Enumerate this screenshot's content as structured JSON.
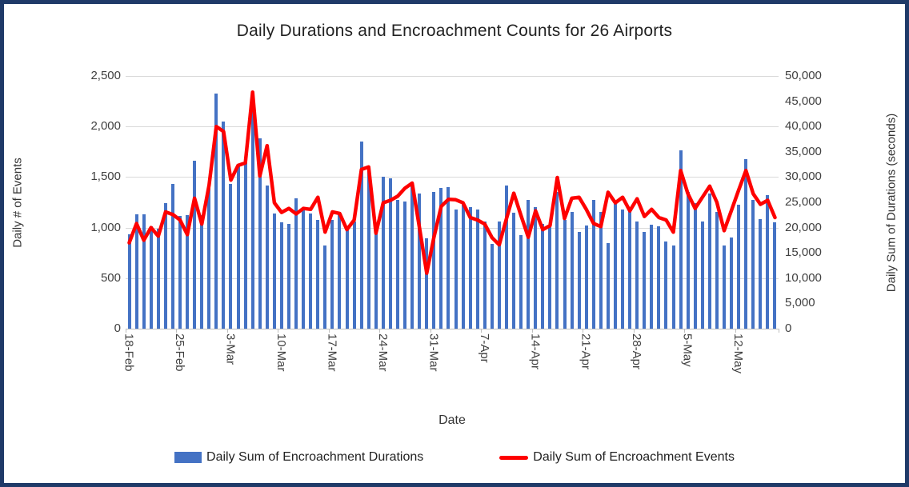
{
  "title": "Daily Durations and Encroachment Counts for 26 Airports",
  "y_left_axis": {
    "title": "Daily # of Events",
    "max": 2500,
    "tick_labels": [
      "2,500",
      "2,000",
      "1,500",
      "1,000",
      "500",
      "0"
    ]
  },
  "y_right_axis": {
    "title": "Daily Sum of Durations (seconds)",
    "max": 50000,
    "tick_labels": [
      "50,000",
      "45,000",
      "40,000",
      "35,000",
      "30,000",
      "25,000",
      "20,000",
      "15,000",
      "10,000",
      "5,000",
      "0"
    ]
  },
  "x_axis": {
    "title": "Date",
    "labeled_tick_interval": 7,
    "tick_labels": [
      "18-Feb",
      "25-Feb",
      "3-Mar",
      "10-Mar",
      "17-Mar",
      "24-Mar",
      "31-Mar",
      "7-Apr",
      "14-Apr",
      "21-Apr",
      "28-Apr",
      "5-May",
      "12-May"
    ]
  },
  "legend": {
    "bar_label": "Daily Sum of Encroachment Durations",
    "line_label": "Daily Sum of Encroachment Events"
  },
  "colors": {
    "bar": "#4472C4",
    "line": "#FE0000",
    "gridline": "#d9d9d9",
    "border": "#1f3a68"
  },
  "chart_data": {
    "type": "bar",
    "subtype": "bar-and-line-combo",
    "grid": "horizontal-on",
    "legend_position": "bottom",
    "x": [
      "18-Feb",
      "19-Feb",
      "20-Feb",
      "21-Feb",
      "22-Feb",
      "23-Feb",
      "24-Feb",
      "25-Feb",
      "26-Feb",
      "27-Feb",
      "28-Feb",
      "29-Feb",
      "1-Mar",
      "2-Mar",
      "3-Mar",
      "4-Mar",
      "5-Mar",
      "6-Mar",
      "7-Mar",
      "8-Mar",
      "9-Mar",
      "10-Mar",
      "11-Mar",
      "12-Mar",
      "13-Mar",
      "14-Mar",
      "15-Mar",
      "16-Mar",
      "17-Mar",
      "18-Mar",
      "19-Mar",
      "20-Mar",
      "21-Mar",
      "22-Mar",
      "23-Mar",
      "24-Mar",
      "25-Mar",
      "26-Mar",
      "27-Mar",
      "28-Mar",
      "29-Mar",
      "30-Mar",
      "31-Mar",
      "1-Apr",
      "2-Apr",
      "3-Apr",
      "4-Apr",
      "5-Apr",
      "6-Apr",
      "7-Apr",
      "8-Apr",
      "9-Apr",
      "10-Apr",
      "11-Apr",
      "12-Apr",
      "13-Apr",
      "14-Apr",
      "15-Apr",
      "16-Apr",
      "17-Apr",
      "18-Apr",
      "19-Apr",
      "20-Apr",
      "21-Apr",
      "22-Apr",
      "23-Apr",
      "24-Apr",
      "25-Apr",
      "26-Apr",
      "27-Apr",
      "28-Apr",
      "29-Apr",
      "30-Apr",
      "1-May",
      "2-May",
      "3-May",
      "4-May",
      "5-May",
      "6-May",
      "7-May",
      "8-May",
      "9-May",
      "10-May",
      "11-May",
      "12-May",
      "13-May",
      "14-May",
      "15-May",
      "16-May",
      "17-May"
    ],
    "series": [
      {
        "name": "Daily Sum of Encroachment Durations",
        "type": "bar",
        "axis": "right",
        "ylabel": "Daily Sum of Durations (seconds)",
        "ylim": [
          0,
          50000
        ],
        "values": [
          18600,
          22600,
          22700,
          20200,
          19800,
          24900,
          28600,
          22300,
          22500,
          33300,
          22500,
          28000,
          46600,
          41000,
          28600,
          32600,
          33000,
          43000,
          37700,
          28400,
          22800,
          21000,
          20700,
          25800,
          23600,
          22800,
          21500,
          16500,
          21500,
          23100,
          19400,
          21200,
          37100,
          31800,
          19400,
          30100,
          29800,
          25400,
          25200,
          28200,
          26700,
          17900,
          27000,
          27800,
          28000,
          23600,
          24600,
          24100,
          23600,
          21200,
          16800,
          21200,
          28300,
          23000,
          18500,
          25400,
          24000,
          20700,
          20400,
          27000,
          21500,
          23100,
          19100,
          20400,
          25400,
          23100,
          17000,
          25200,
          23600,
          23300,
          21200,
          19100,
          20600,
          20200,
          17300,
          16500,
          35300,
          27000,
          24900,
          21200,
          26700,
          23100,
          16500,
          18100,
          24600,
          33600,
          25500,
          21700,
          26400,
          21100
        ]
      },
      {
        "name": "Daily Sum of Encroachment Events",
        "type": "line",
        "axis": "left",
        "ylabel": "Daily # of Events",
        "ylim": [
          0,
          2500
        ],
        "values": [
          850,
          1040,
          875,
          1000,
          915,
          1155,
          1130,
          1075,
          930,
          1290,
          1035,
          1420,
          2000,
          1950,
          1470,
          1615,
          1640,
          2340,
          1510,
          1810,
          1245,
          1150,
          1190,
          1135,
          1190,
          1180,
          1300,
          955,
          1155,
          1140,
          980,
          1075,
          1575,
          1600,
          945,
          1245,
          1270,
          1310,
          1390,
          1440,
          1000,
          550,
          905,
          1210,
          1280,
          1275,
          1245,
          1100,
          1075,
          1035,
          900,
          830,
          1090,
          1340,
          1120,
          905,
          1165,
          980,
          1020,
          1495,
          1090,
          1290,
          1300,
          1180,
          1040,
          1010,
          1350,
          1245,
          1300,
          1165,
          1285,
          1110,
          1180,
          1100,
          1075,
          955,
          1565,
          1335,
          1190,
          1300,
          1410,
          1250,
          970,
          1170,
          1370,
          1565,
          1335,
          1230,
          1270,
          1100
        ]
      }
    ],
    "title": "Daily Durations and Encroachment Counts for 26 Airports",
    "xlabel": "Date"
  }
}
